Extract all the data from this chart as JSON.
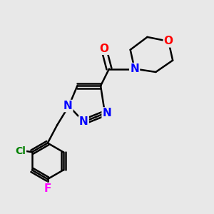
{
  "background_color": "#e8e8e8",
  "bond_color": "#000000",
  "bond_width": 1.8,
  "atom_colors": {
    "N": "#0000ff",
    "O": "#ff0000",
    "Cl": "#008000",
    "F": "#ff00ff",
    "C": "#000000"
  },
  "font_size_atoms": 11,
  "font_size_cl": 10
}
